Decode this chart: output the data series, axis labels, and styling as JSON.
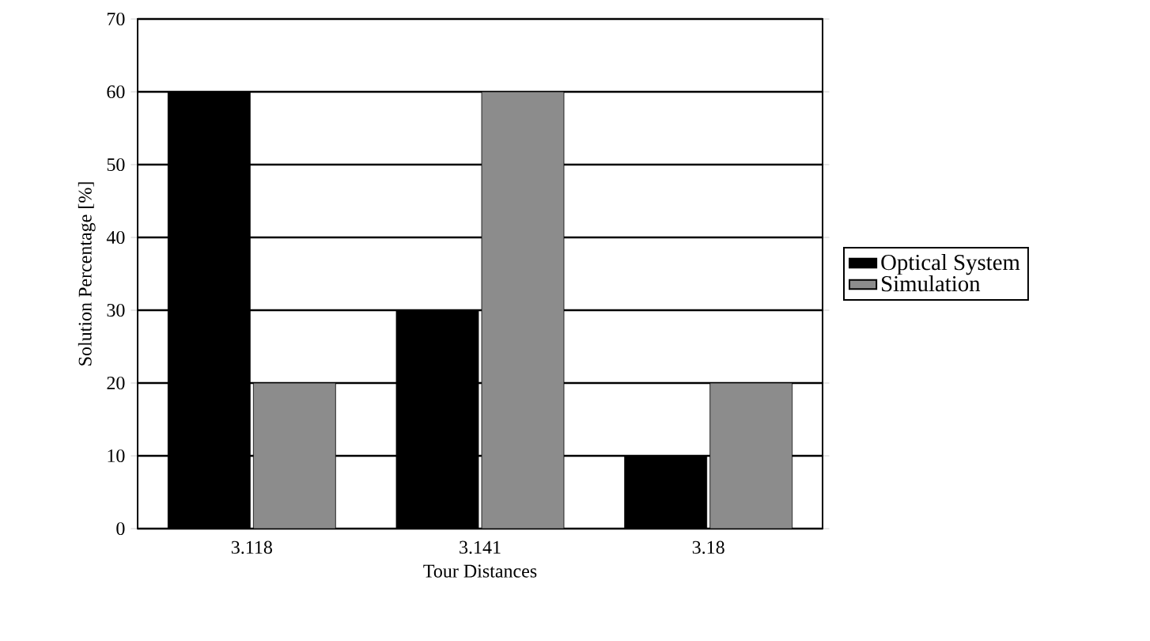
{
  "chart_data": {
    "type": "bar",
    "xlabel": "Tour Distances",
    "ylabel": "Solution Percentage [%]",
    "categories": [
      "3.118",
      "3.141",
      "3.18"
    ],
    "series": [
      {
        "name": "Optical System",
        "color": "#000000",
        "values": [
          60,
          30,
          10
        ]
      },
      {
        "name": "Simulation",
        "color": "#8c8c8c",
        "values": [
          20,
          60,
          20
        ]
      }
    ],
    "ylim": [
      0,
      70
    ],
    "yticks": [
      0,
      10,
      20,
      30,
      40,
      50,
      60,
      70
    ],
    "grid": "y",
    "legend": "right"
  }
}
